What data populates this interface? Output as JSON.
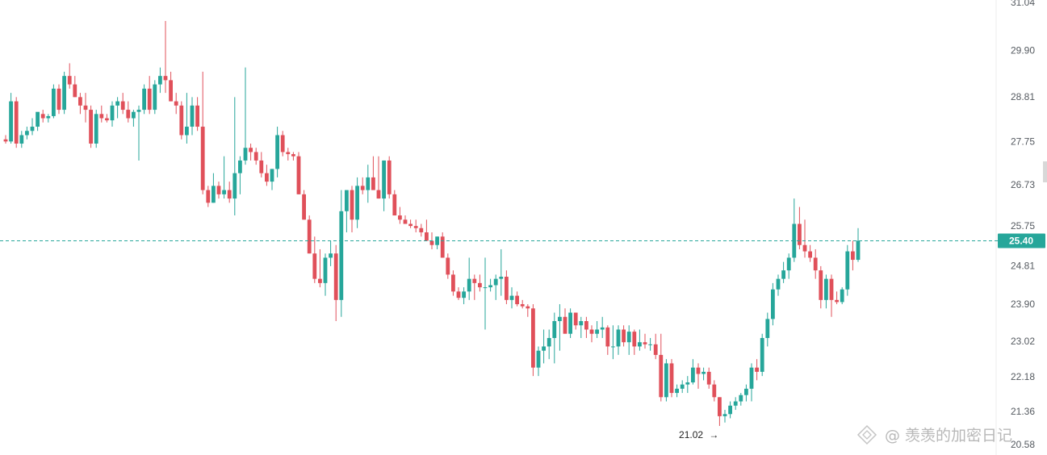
{
  "chart_data": {
    "type": "candlestick",
    "y_ticks": [
      "31.04",
      "29.90",
      "28.81",
      "27.75",
      "26.73",
      "25.75",
      "24.81",
      "23.90",
      "23.02",
      "22.18",
      "21.36",
      "20.58"
    ],
    "ylim": [
      20.58,
      31.04
    ],
    "current_price": 25.4,
    "current_price_label": "25.40",
    "low_annotation": {
      "label": "21.02",
      "value": 21.02,
      "arrow": "→"
    },
    "colors": {
      "up": "#26a69a",
      "down": "#e0505a",
      "price_line": "#26a69a",
      "axis_text": "#555a60"
    },
    "candles": [
      [
        27.8,
        27.9,
        27.7,
        27.75
      ],
      [
        27.75,
        28.9,
        27.7,
        28.7
      ],
      [
        28.7,
        28.8,
        27.6,
        27.7
      ],
      [
        27.7,
        28.0,
        27.6,
        27.9
      ],
      [
        27.9,
        28.1,
        27.8,
        28.0
      ],
      [
        28.0,
        28.3,
        27.9,
        28.1
      ],
      [
        28.1,
        28.4,
        28.0,
        28.45
      ],
      [
        28.4,
        28.5,
        28.2,
        28.3
      ],
      [
        28.3,
        28.4,
        28.2,
        28.35
      ],
      [
        28.35,
        29.1,
        28.3,
        29.0
      ],
      [
        29.0,
        29.1,
        28.4,
        28.5
      ],
      [
        28.5,
        29.4,
        28.4,
        29.3
      ],
      [
        29.3,
        29.6,
        29.0,
        29.1
      ],
      [
        29.1,
        29.3,
        28.8,
        28.8
      ],
      [
        28.8,
        28.9,
        28.4,
        28.6
      ],
      [
        28.6,
        28.9,
        28.2,
        28.5
      ],
      [
        28.5,
        28.6,
        27.6,
        27.7
      ],
      [
        27.7,
        28.5,
        27.6,
        28.4
      ],
      [
        28.4,
        28.6,
        28.2,
        28.3
      ],
      [
        28.3,
        28.4,
        28.2,
        28.25
      ],
      [
        28.25,
        28.7,
        28.1,
        28.6
      ],
      [
        28.6,
        28.8,
        28.3,
        28.7
      ],
      [
        28.7,
        28.9,
        28.4,
        28.5
      ],
      [
        28.5,
        28.7,
        28.2,
        28.3
      ],
      [
        28.3,
        28.5,
        28.1,
        28.45
      ],
      [
        28.45,
        28.6,
        27.3,
        28.5
      ],
      [
        28.5,
        29.1,
        28.4,
        29.0
      ],
      [
        29.0,
        29.3,
        28.4,
        28.5
      ],
      [
        28.5,
        29.2,
        28.4,
        29.1
      ],
      [
        29.1,
        29.5,
        28.9,
        29.3
      ],
      [
        29.3,
        30.6,
        28.9,
        29.2
      ],
      [
        29.2,
        29.4,
        28.7,
        28.7
      ],
      [
        28.7,
        28.9,
        28.4,
        28.6
      ],
      [
        28.6,
        28.7,
        27.8,
        27.9
      ],
      [
        27.9,
        28.9,
        27.7,
        28.1
      ],
      [
        28.1,
        28.8,
        27.9,
        28.6
      ],
      [
        28.6,
        28.8,
        28.0,
        28.1
      ],
      [
        28.1,
        29.4,
        26.5,
        26.6
      ],
      [
        26.6,
        26.7,
        26.2,
        26.3
      ],
      [
        26.3,
        27.0,
        26.3,
        26.7
      ],
      [
        26.7,
        26.8,
        26.4,
        26.5
      ],
      [
        26.5,
        27.4,
        26.4,
        26.6
      ],
      [
        26.6,
        26.8,
        26.3,
        26.4
      ],
      [
        26.4,
        28.8,
        26.0,
        27.0
      ],
      [
        27.0,
        27.4,
        26.5,
        27.3
      ],
      [
        27.3,
        29.5,
        27.2,
        27.6
      ],
      [
        27.6,
        27.7,
        27.3,
        27.5
      ],
      [
        27.5,
        27.6,
        27.2,
        27.3
      ],
      [
        27.3,
        27.5,
        26.9,
        27.0
      ],
      [
        27.0,
        27.2,
        26.7,
        26.8
      ],
      [
        26.8,
        27.1,
        26.6,
        27.1
      ],
      [
        27.1,
        28.1,
        26.9,
        27.9
      ],
      [
        27.9,
        28.0,
        27.4,
        27.5
      ],
      [
        27.5,
        27.6,
        27.3,
        27.45
      ],
      [
        27.45,
        27.5,
        27.3,
        27.4
      ],
      [
        27.4,
        27.5,
        26.5,
        26.5
      ],
      [
        26.5,
        26.6,
        25.9,
        25.9
      ],
      [
        25.9,
        26.0,
        25.1,
        25.1
      ],
      [
        25.1,
        25.5,
        24.4,
        24.5
      ],
      [
        24.5,
        25.2,
        24.3,
        24.4
      ],
      [
        24.4,
        25.1,
        24.1,
        25.0
      ],
      [
        25.0,
        25.4,
        24.8,
        25.1
      ],
      [
        25.1,
        25.3,
        23.5,
        24.0
      ],
      [
        24.0,
        26.6,
        23.6,
        26.1
      ],
      [
        26.1,
        26.5,
        25.6,
        26.6
      ],
      [
        26.6,
        26.7,
        25.6,
        25.9
      ],
      [
        25.9,
        26.9,
        25.7,
        26.7
      ],
      [
        26.7,
        26.9,
        26.5,
        26.6
      ],
      [
        26.6,
        27.2,
        26.3,
        26.9
      ],
      [
        26.9,
        27.4,
        26.7,
        26.6
      ],
      [
        26.6,
        27.4,
        26.4,
        26.4
      ],
      [
        26.4,
        27.3,
        26.1,
        27.3
      ],
      [
        27.3,
        27.4,
        26.4,
        26.5
      ],
      [
        26.5,
        26.6,
        26.0,
        26.0
      ],
      [
        26.0,
        26.2,
        25.8,
        25.9
      ],
      [
        25.9,
        26.0,
        25.8,
        25.8
      ],
      [
        25.8,
        25.9,
        25.7,
        25.75
      ],
      [
        25.75,
        25.9,
        25.6,
        25.7
      ],
      [
        25.7,
        25.8,
        25.5,
        25.6
      ],
      [
        25.6,
        25.9,
        25.4,
        25.4
      ],
      [
        25.4,
        25.6,
        25.2,
        25.3
      ],
      [
        25.3,
        25.5,
        25.2,
        25.5
      ],
      [
        25.5,
        25.6,
        25.0,
        25.0
      ],
      [
        25.0,
        25.1,
        24.5,
        24.6
      ],
      [
        24.6,
        24.7,
        24.1,
        24.2
      ],
      [
        24.2,
        24.3,
        24.0,
        24.05
      ],
      [
        24.05,
        24.3,
        23.9,
        24.2
      ],
      [
        24.2,
        25.0,
        24.0,
        24.5
      ],
      [
        24.5,
        24.6,
        24.0,
        24.4
      ],
      [
        24.4,
        24.6,
        24.2,
        24.3
      ],
      [
        24.3,
        25.0,
        23.3,
        24.3
      ],
      [
        24.3,
        24.5,
        24.2,
        24.35
      ],
      [
        24.35,
        24.6,
        24.0,
        24.5
      ],
      [
        24.5,
        25.2,
        24.1,
        24.55
      ],
      [
        24.55,
        24.7,
        23.9,
        24.0
      ],
      [
        24.0,
        24.3,
        23.8,
        24.1
      ],
      [
        24.1,
        24.2,
        23.85,
        23.9
      ],
      [
        23.9,
        24.0,
        23.8,
        23.85
      ],
      [
        23.85,
        23.9,
        23.6,
        23.8
      ],
      [
        23.8,
        23.9,
        22.2,
        22.4
      ],
      [
        22.4,
        22.9,
        22.2,
        22.8
      ],
      [
        22.8,
        23.3,
        22.5,
        22.9
      ],
      [
        22.9,
        23.3,
        22.6,
        23.1
      ],
      [
        23.1,
        23.7,
        22.5,
        23.5
      ],
      [
        23.5,
        23.9,
        22.8,
        23.6
      ],
      [
        23.6,
        23.8,
        23.3,
        23.2
      ],
      [
        23.2,
        23.8,
        23.1,
        23.7
      ],
      [
        23.7,
        23.7,
        23.3,
        23.4
      ],
      [
        23.4,
        23.6,
        23.1,
        23.5
      ],
      [
        23.5,
        23.6,
        23.1,
        23.3
      ],
      [
        23.3,
        23.4,
        23.0,
        23.2
      ],
      [
        23.2,
        23.5,
        23.1,
        23.3
      ],
      [
        23.3,
        23.6,
        23.1,
        23.35
      ],
      [
        23.35,
        23.4,
        22.7,
        22.9
      ],
      [
        22.9,
        23.4,
        22.6,
        22.9
      ],
      [
        22.9,
        23.4,
        22.7,
        23.3
      ],
      [
        23.3,
        23.4,
        22.9,
        23.0
      ],
      [
        23.0,
        23.4,
        22.7,
        23.25
      ],
      [
        23.25,
        23.3,
        22.7,
        22.9
      ],
      [
        22.9,
        23.3,
        22.8,
        23.0
      ],
      [
        23.0,
        23.2,
        22.85,
        22.95
      ],
      [
        22.95,
        23.1,
        22.8,
        22.95
      ],
      [
        22.95,
        23.2,
        22.6,
        22.7
      ],
      [
        22.7,
        23.2,
        21.6,
        21.7
      ],
      [
        21.7,
        22.6,
        21.6,
        22.5
      ],
      [
        22.5,
        22.6,
        21.7,
        21.8
      ],
      [
        21.8,
        22.0,
        21.7,
        21.9
      ],
      [
        21.9,
        22.1,
        21.8,
        22.0
      ],
      [
        22.0,
        22.2,
        21.8,
        22.05
      ],
      [
        22.05,
        22.6,
        22.0,
        22.4
      ],
      [
        22.4,
        22.5,
        21.9,
        22.25
      ],
      [
        22.25,
        22.4,
        22.1,
        22.3
      ],
      [
        22.3,
        22.4,
        21.9,
        22.0
      ],
      [
        22.0,
        22.1,
        21.6,
        21.7
      ],
      [
        21.7,
        21.7,
        21.02,
        21.25
      ],
      [
        21.25,
        21.4,
        21.1,
        21.3
      ],
      [
        21.3,
        21.6,
        21.2,
        21.5
      ],
      [
        21.5,
        21.7,
        21.4,
        21.6
      ],
      [
        21.6,
        21.8,
        21.5,
        21.75
      ],
      [
        21.75,
        22.0,
        21.6,
        21.9
      ],
      [
        21.9,
        22.5,
        21.6,
        22.4
      ],
      [
        22.4,
        22.6,
        22.1,
        22.3
      ],
      [
        22.3,
        23.2,
        22.2,
        23.1
      ],
      [
        23.1,
        23.7,
        22.9,
        23.55
      ],
      [
        23.55,
        24.4,
        23.4,
        24.25
      ],
      [
        24.25,
        24.6,
        24.1,
        24.5
      ],
      [
        24.5,
        24.9,
        24.4,
        24.7
      ],
      [
        24.7,
        25.1,
        24.5,
        25.0
      ],
      [
        25.0,
        26.4,
        24.9,
        25.8
      ],
      [
        25.8,
        26.2,
        25.2,
        25.3
      ],
      [
        25.3,
        25.9,
        25.0,
        25.15
      ],
      [
        25.15,
        25.3,
        24.9,
        25.0
      ],
      [
        25.0,
        25.2,
        24.5,
        24.7
      ],
      [
        24.7,
        24.8,
        23.8,
        24.0
      ],
      [
        24.0,
        24.6,
        23.8,
        24.5
      ],
      [
        24.5,
        24.6,
        23.6,
        24.0
      ],
      [
        24.0,
        24.2,
        23.9,
        23.95
      ],
      [
        23.95,
        24.3,
        23.9,
        24.25
      ],
      [
        24.25,
        25.3,
        24.1,
        25.15
      ],
      [
        25.15,
        25.4,
        24.7,
        24.95
      ],
      [
        24.95,
        25.7,
        24.9,
        25.4
      ]
    ]
  },
  "watermark": {
    "icon": "diamond-logo-icon",
    "text": "@ 羡羡的加密日记"
  }
}
